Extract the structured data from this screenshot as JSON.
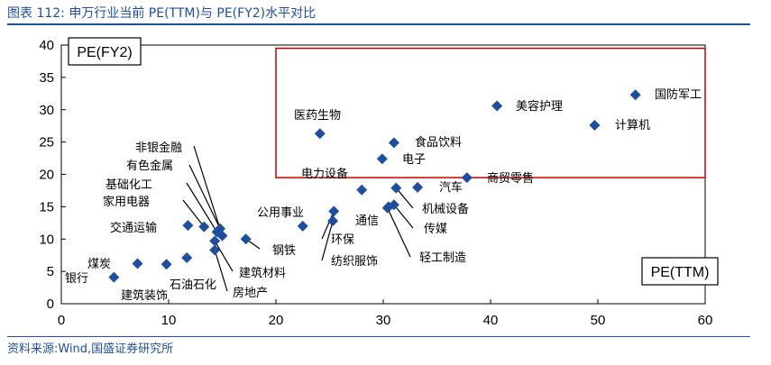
{
  "header": {
    "title": "图表 112:  申万行业当前 PE(TTM)与 PE(FY2)水平对比"
  },
  "footer": {
    "source": "资料来源:Wind,国盛证券研究所"
  },
  "colors": {
    "accent": "#1f4e9e",
    "marker": "#1f4e9e",
    "highlight_box": "#c00000"
  },
  "chart_data": {
    "type": "scatter",
    "title": "",
    "xlabel": "PE(TTM)",
    "ylabel": "PE(FY2)",
    "xlim": [
      0,
      60
    ],
    "ylim": [
      0,
      40
    ],
    "xticks": [
      0,
      10,
      20,
      30,
      40,
      50,
      60
    ],
    "yticks": [
      0,
      5,
      10,
      15,
      20,
      25,
      30,
      35,
      40
    ],
    "grid": false,
    "highlight_region": {
      "x": [
        20,
        60
      ],
      "y": [
        19.5,
        39.5
      ]
    },
    "points": [
      {
        "label": "银行",
        "x": 4.9,
        "y": 4.1
      },
      {
        "label": "煤炭",
        "x": 7.1,
        "y": 6.2
      },
      {
        "label": "建筑装饰",
        "x": 9.8,
        "y": 6.1
      },
      {
        "label": "石油石化",
        "x": 11.7,
        "y": 7.1
      },
      {
        "label": "交通运输",
        "x": 11.8,
        "y": 12.1
      },
      {
        "label": "家用电器",
        "x": 13.3,
        "y": 11.9
      },
      {
        "label": "基础化工",
        "x": 14.5,
        "y": 11.1
      },
      {
        "label": "有色金属",
        "x": 14.8,
        "y": 11.6
      },
      {
        "label": "非银金融",
        "x": 15.0,
        "y": 10.5
      },
      {
        "label": "建筑材料",
        "x": 14.3,
        "y": 9.7
      },
      {
        "label": "房地产",
        "x": 14.3,
        "y": 8.3
      },
      {
        "label": "钢铁",
        "x": 17.2,
        "y": 10.0
      },
      {
        "label": "公用事业",
        "x": 22.5,
        "y": 12.0
      },
      {
        "label": "环保",
        "x": 25.4,
        "y": 14.3
      },
      {
        "label": "纺织服饰",
        "x": 25.3,
        "y": 12.8
      },
      {
        "label": "通信",
        "x": 30.5,
        "y": 15.0
      },
      {
        "label": "传媒",
        "x": 31.0,
        "y": 15.3
      },
      {
        "label": "轻工制造",
        "x": 30.4,
        "y": 14.8
      },
      {
        "label": "电力设备",
        "x": 28.0,
        "y": 17.6
      },
      {
        "label": "机械设备",
        "x": 31.2,
        "y": 17.9
      },
      {
        "label": "汽车",
        "x": 33.2,
        "y": 18.0
      },
      {
        "label": "电子",
        "x": 29.9,
        "y": 22.4
      },
      {
        "label": "食品饮料",
        "x": 31.0,
        "y": 24.9
      },
      {
        "label": "医药生物",
        "x": 24.1,
        "y": 26.3
      },
      {
        "label": "商贸零售",
        "x": 37.8,
        "y": 19.5
      },
      {
        "label": "美容护理",
        "x": 40.6,
        "y": 30.6
      },
      {
        "label": "计算机",
        "x": 49.7,
        "y": 27.6
      },
      {
        "label": "国防军工",
        "x": 53.5,
        "y": 32.3
      }
    ]
  }
}
